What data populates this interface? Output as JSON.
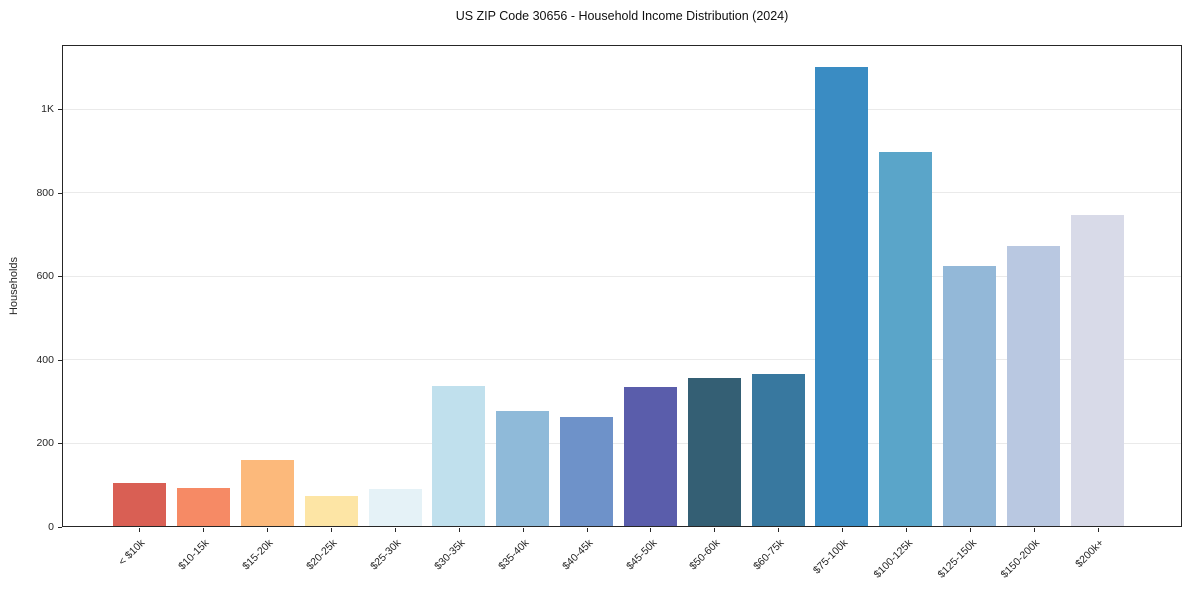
{
  "chart_data": {
    "type": "bar",
    "title": "US ZIP Code 30656 - Household Income Distribution (2024)",
    "xlabel": "",
    "ylabel": "Households",
    "categories": [
      "< $10k",
      "$10-15k",
      "$15-20k",
      "$20-25k",
      "$25-30k",
      "$30-35k",
      "$35-40k",
      "$40-45k",
      "$45-50k",
      "$50-60k",
      "$60-75k",
      "$75-100k",
      "$100-125k",
      "$125-150k",
      "$150-200k",
      "$200k+"
    ],
    "values": [
      104,
      90,
      158,
      71,
      89,
      336,
      275,
      261,
      333,
      355,
      365,
      1100,
      896,
      622,
      670,
      746
    ],
    "bar_colors": [
      "#d95f54",
      "#f68a65",
      "#fcb97b",
      "#fde5a5",
      "#e5f2f7",
      "#c0e0ed",
      "#8fbad9",
      "#6e92c9",
      "#5a5dab",
      "#345f74",
      "#38789f",
      "#3a8cc3",
      "#5aa5c9",
      "#93b8d8",
      "#b9c8e1",
      "#d8dae8"
    ],
    "ylim": [
      0,
      1155
    ],
    "yticks": [
      0,
      200,
      400,
      600,
      800,
      1000
    ],
    "ytick_labels": [
      "0",
      "200",
      "400",
      "600",
      "800",
      "1K"
    ],
    "grid": "horizontal-only",
    "grid_color": "#eaeaea",
    "axis_color": "#262626",
    "legend": "none"
  }
}
